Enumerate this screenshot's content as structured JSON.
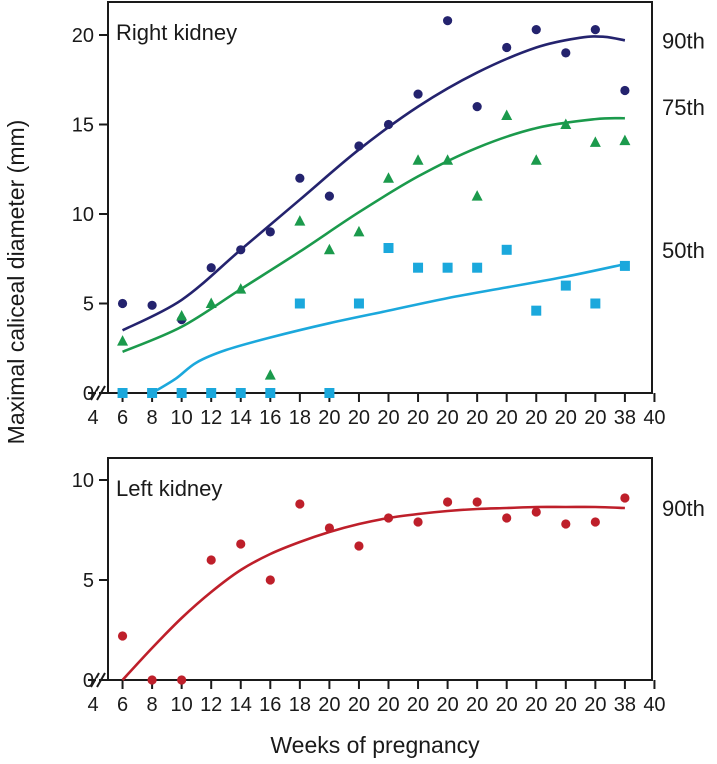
{
  "chart_data": [
    {
      "type": "scatter",
      "title": "Right kidney",
      "xlabel": "Weeks of pregnancy",
      "ylabel": "Maximal caliceal diameter (mm)",
      "ylim": [
        0,
        21
      ],
      "yticks": [
        "0",
        "5",
        "10",
        "15",
        "20"
      ],
      "x_tick_labels": [
        "4",
        "6",
        "8",
        "10",
        "12",
        "14",
        "16",
        "18",
        "20",
        "20",
        "20",
        "20",
        "20",
        "20",
        "20",
        "20",
        "20",
        "20",
        "38",
        "40"
      ],
      "axis_break": true,
      "grid": false,
      "series": [
        {
          "name": "90th",
          "color": "#24236e",
          "marker": "circle",
          "points": [
            [
              1,
              5.0
            ],
            [
              2,
              4.9
            ],
            [
              3,
              4.1
            ],
            [
              4,
              7.0
            ],
            [
              5,
              8.0
            ],
            [
              6,
              9.0
            ],
            [
              7,
              12.0
            ],
            [
              8,
              11.0
            ],
            [
              9,
              13.8
            ],
            [
              10,
              15.0
            ],
            [
              11,
              16.7
            ],
            [
              12,
              20.8
            ],
            [
              13,
              16.0
            ],
            [
              14,
              19.3
            ],
            [
              15,
              20.3
            ],
            [
              16,
              19.0
            ],
            [
              17,
              20.3
            ],
            [
              18,
              16.9
            ]
          ],
          "curve": [
            [
              1,
              3.5
            ],
            [
              3,
              5.2
            ],
            [
              5,
              8.0
            ],
            [
              7,
              10.8
            ],
            [
              9,
              13.6
            ],
            [
              11,
              16.0
            ],
            [
              13,
              17.9
            ],
            [
              15,
              19.3
            ],
            [
              16.5,
              19.85
            ],
            [
              17.3,
              19.9
            ],
            [
              18,
              19.7
            ]
          ]
        },
        {
          "name": "75th",
          "color": "#1b9a4c",
          "marker": "triangle",
          "points": [
            [
              1,
              2.9
            ],
            [
              3,
              4.3
            ],
            [
              4,
              5.0
            ],
            [
              5,
              5.8
            ],
            [
              6,
              1.0
            ],
            [
              7,
              9.6
            ],
            [
              8,
              8.0
            ],
            [
              9,
              9.0
            ],
            [
              10,
              12.0
            ],
            [
              11,
              13.0
            ],
            [
              12,
              13.0
            ],
            [
              13,
              11.0
            ],
            [
              14,
              15.5
            ],
            [
              15,
              13.0
            ],
            [
              16,
              15.0
            ],
            [
              17,
              14.0
            ],
            [
              18,
              14.1
            ]
          ],
          "curve": [
            [
              1,
              2.3
            ],
            [
              3,
              3.7
            ],
            [
              5,
              5.8
            ],
            [
              7,
              7.9
            ],
            [
              9,
              10.1
            ],
            [
              11,
              12.1
            ],
            [
              13,
              13.7
            ],
            [
              15,
              14.8
            ],
            [
              17,
              15.3
            ],
            [
              18,
              15.35
            ]
          ]
        },
        {
          "name": "50th",
          "color": "#1ba8dc",
          "marker": "square",
          "points": [
            [
              1,
              0
            ],
            [
              2,
              0
            ],
            [
              3,
              0
            ],
            [
              4,
              0
            ],
            [
              5,
              0
            ],
            [
              6,
              0
            ],
            [
              7,
              5.0
            ],
            [
              9,
              5.0
            ],
            [
              8,
              0
            ],
            [
              10,
              8.1
            ],
            [
              11,
              7.0
            ],
            [
              12,
              7.0
            ],
            [
              13,
              7.0
            ],
            [
              14,
              8.0
            ],
            [
              15,
              4.6
            ],
            [
              16,
              6.0
            ],
            [
              17,
              5.0
            ],
            [
              18,
              7.1
            ]
          ],
          "curve": [
            [
              2,
              0
            ],
            [
              2.8,
              0.8
            ],
            [
              3.5,
              1.7
            ],
            [
              4.5,
              2.4
            ],
            [
              6,
              3.1
            ],
            [
              8,
              3.9
            ],
            [
              10,
              4.6
            ],
            [
              12,
              5.3
            ],
            [
              14,
              5.9
            ],
            [
              16,
              6.5
            ],
            [
              18,
              7.2
            ]
          ]
        }
      ]
    },
    {
      "type": "scatter",
      "title": "Left kidney",
      "xlabel": "Weeks of pregnancy",
      "ylim": [
        0,
        11
      ],
      "yticks": [
        "0",
        "5",
        "10"
      ],
      "x_tick_labels": [
        "4",
        "6",
        "8",
        "10",
        "12",
        "14",
        "16",
        "18",
        "20",
        "20",
        "20",
        "20",
        "20",
        "20",
        "20",
        "20",
        "20",
        "20",
        "38",
        "40"
      ],
      "axis_break": true,
      "grid": false,
      "series": [
        {
          "name": "90th",
          "color": "#be1f2a",
          "marker": "circle",
          "points": [
            [
              1,
              2.2
            ],
            [
              2,
              0
            ],
            [
              3,
              0
            ],
            [
              4,
              6.0
            ],
            [
              5,
              6.8
            ],
            [
              6,
              5.0
            ],
            [
              7,
              8.8
            ],
            [
              8,
              7.6
            ],
            [
              9,
              6.7
            ],
            [
              10,
              8.1
            ],
            [
              11,
              7.9
            ],
            [
              12,
              8.9
            ],
            [
              13,
              8.9
            ],
            [
              14,
              8.1
            ],
            [
              15,
              8.4
            ],
            [
              16,
              7.8
            ],
            [
              17,
              7.9
            ],
            [
              18,
              9.1
            ]
          ],
          "curve": [
            [
              1,
              0
            ],
            [
              2,
              1.6
            ],
            [
              3,
              3.1
            ],
            [
              4,
              4.4
            ],
            [
              5,
              5.5
            ],
            [
              6,
              6.3
            ],
            [
              7,
              6.9
            ],
            [
              8,
              7.4
            ],
            [
              9,
              7.8
            ],
            [
              10,
              8.1
            ],
            [
              11,
              8.3
            ],
            [
              12,
              8.45
            ],
            [
              13,
              8.55
            ],
            [
              14,
              8.6
            ],
            [
              15,
              8.65
            ],
            [
              16,
              8.65
            ],
            [
              17,
              8.65
            ],
            [
              18,
              8.6
            ]
          ]
        }
      ]
    }
  ]
}
